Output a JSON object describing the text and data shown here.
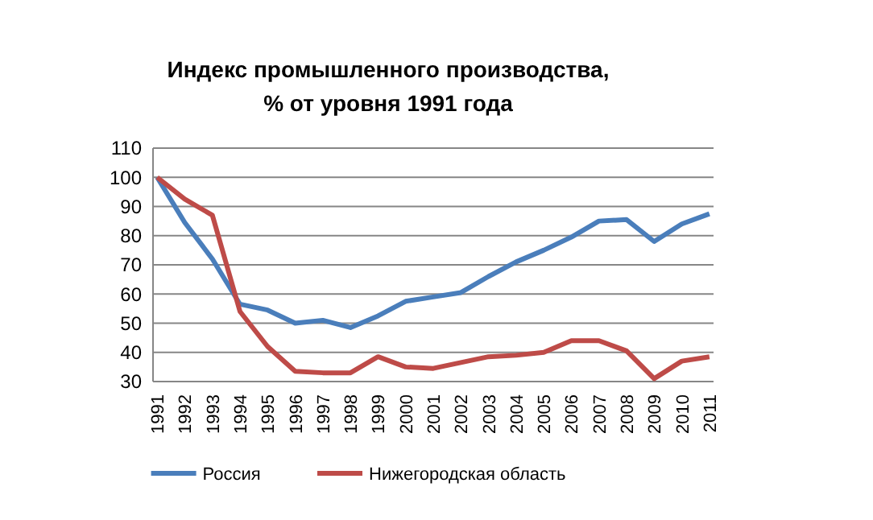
{
  "chart_data": {
    "type": "line",
    "title": "Индекс промышленного производства,\n% от уровня 1991 года",
    "categories": [
      "1991",
      "1992",
      "1993",
      "1994",
      "1995",
      "1996",
      "1997",
      "1998",
      "1999",
      "2000",
      "2001",
      "2002",
      "2003",
      "2004",
      "2005",
      "2006",
      "2007",
      "2008",
      "2009",
      "2010",
      "2011"
    ],
    "series": [
      {
        "name": "Россия",
        "color": "#4a7ebb",
        "values": [
          100,
          84.5,
          72,
          56.5,
          54.5,
          50,
          51,
          48.5,
          52.5,
          57.5,
          59,
          60.5,
          66,
          71,
          75,
          79.5,
          85,
          85.5,
          78,
          84,
          87.5
        ]
      },
      {
        "name": "Нижегородская область",
        "color": "#be4b48",
        "values": [
          100,
          92.5,
          87,
          54,
          42,
          33.5,
          33,
          33,
          38.5,
          35,
          34.5,
          36.5,
          38.5,
          39,
          40,
          44,
          44,
          40.5,
          31,
          37,
          38.5
        ]
      }
    ],
    "ylim": [
      30,
      110
    ],
    "yticks": [
      30,
      40,
      50,
      60,
      70,
      80,
      90,
      100,
      110
    ],
    "grid": "y",
    "legend": "bottom",
    "marker": "none",
    "line_style": "solid"
  }
}
